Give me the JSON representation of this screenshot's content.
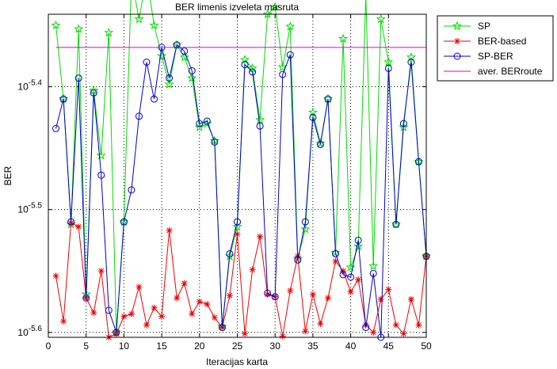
{
  "chart_data": {
    "type": "line",
    "title": "BER limenis izveleta masruta",
    "xlabel": "Iteracijas karta",
    "ylabel": "BER",
    "xlim": [
      0,
      50
    ],
    "y_scale": "log",
    "ylim_exponent": [
      -5.604,
      -5.341
    ],
    "xticks": [
      0,
      5,
      10,
      15,
      20,
      25,
      30,
      35,
      40,
      45,
      50
    ],
    "yticks": [
      {
        "exponent": -5.4,
        "base": "10",
        "sup": "-5.4"
      },
      {
        "exponent": -5.5,
        "base": "10",
        "sup": "-5.5"
      },
      {
        "exponent": -5.6,
        "base": "10",
        "sup": "-5.6"
      }
    ],
    "grid": true,
    "legend_position": "outside-right-top",
    "x": [
      1,
      2,
      3,
      4,
      5,
      6,
      7,
      8,
      9,
      10,
      11,
      12,
      13,
      14,
      15,
      16,
      17,
      18,
      19,
      20,
      21,
      22,
      23,
      24,
      25,
      26,
      27,
      28,
      29,
      30,
      31,
      32,
      33,
      34,
      35,
      36,
      37,
      38,
      39,
      40,
      41,
      42,
      43,
      44,
      45,
      46,
      47,
      48,
      49,
      50
    ],
    "series": [
      {
        "name": "SP",
        "color": "#00dd00",
        "marker": "pentagram",
        "exponent_values": [
          -5.35,
          -5.41,
          -5.512,
          -5.353,
          -5.569,
          -5.403,
          -5.456,
          -5.356,
          -5.6,
          -5.51,
          -5.311,
          -5.345,
          -5.31,
          -5.35,
          -5.375,
          -5.398,
          -5.366,
          -5.376,
          -5.393,
          -5.433,
          -5.43,
          -5.444,
          -5.595,
          -5.538,
          -5.514,
          -5.378,
          -5.385,
          -5.427,
          -5.341,
          -5.335,
          -5.384,
          -5.351,
          -5.54,
          -5.516,
          -5.421,
          -5.446,
          -5.41,
          -5.535,
          -5.361,
          -5.547,
          -5.53,
          -5.325,
          -5.546,
          -5.345,
          -5.38,
          -5.512,
          -5.433,
          -5.376,
          -5.461,
          -5.538
        ]
      },
      {
        "name": "BER-based",
        "color": "#ee0000",
        "marker": "asterisk",
        "exponent_values": [
          -5.554,
          -5.591,
          -5.511,
          -5.514,
          -5.572,
          -5.584,
          -5.55,
          -5.604,
          -5.601,
          -5.587,
          -5.585,
          -5.563,
          -5.594,
          -5.58,
          -5.587,
          -5.517,
          -5.572,
          -5.56,
          -5.585,
          -5.575,
          -5.577,
          -5.588,
          -5.596,
          -5.57,
          -5.52,
          -5.601,
          -5.549,
          -5.522,
          -5.569,
          -5.571,
          -5.603,
          -5.566,
          -5.538,
          -5.599,
          -5.569,
          -5.593,
          -5.572,
          -5.542,
          -5.55,
          -5.567,
          -5.557,
          -5.594,
          -5.6,
          -5.573,
          -5.565,
          -5.594,
          -5.601,
          -5.573,
          -5.594,
          -5.538
        ]
      },
      {
        "name": "SP-BER",
        "color": "#0000cc",
        "marker": "circle",
        "exponent_values": [
          -5.434,
          -5.41,
          -5.51,
          -5.393,
          -5.572,
          -5.405,
          -5.472,
          -5.582,
          -5.6,
          -5.51,
          -5.484,
          -5.424,
          -5.38,
          -5.41,
          -5.368,
          -5.393,
          -5.366,
          -5.371,
          -5.387,
          -5.43,
          -5.428,
          -5.445,
          -5.596,
          -5.536,
          -5.51,
          -5.382,
          -5.388,
          -5.432,
          -5.568,
          -5.571,
          -5.39,
          -5.374,
          -5.541,
          -5.51,
          -5.425,
          -5.447,
          -5.41,
          -5.536,
          -5.553,
          -5.555,
          -5.525,
          -5.596,
          -5.552,
          -5.604,
          -5.385,
          -5.512,
          -5.43,
          -5.38,
          -5.461,
          -5.538
        ]
      },
      {
        "name": "aver. BERroute",
        "color": "#dd00dd",
        "marker": "none",
        "exponent_values": [
          -5.368,
          -5.368
        ]
      }
    ]
  }
}
